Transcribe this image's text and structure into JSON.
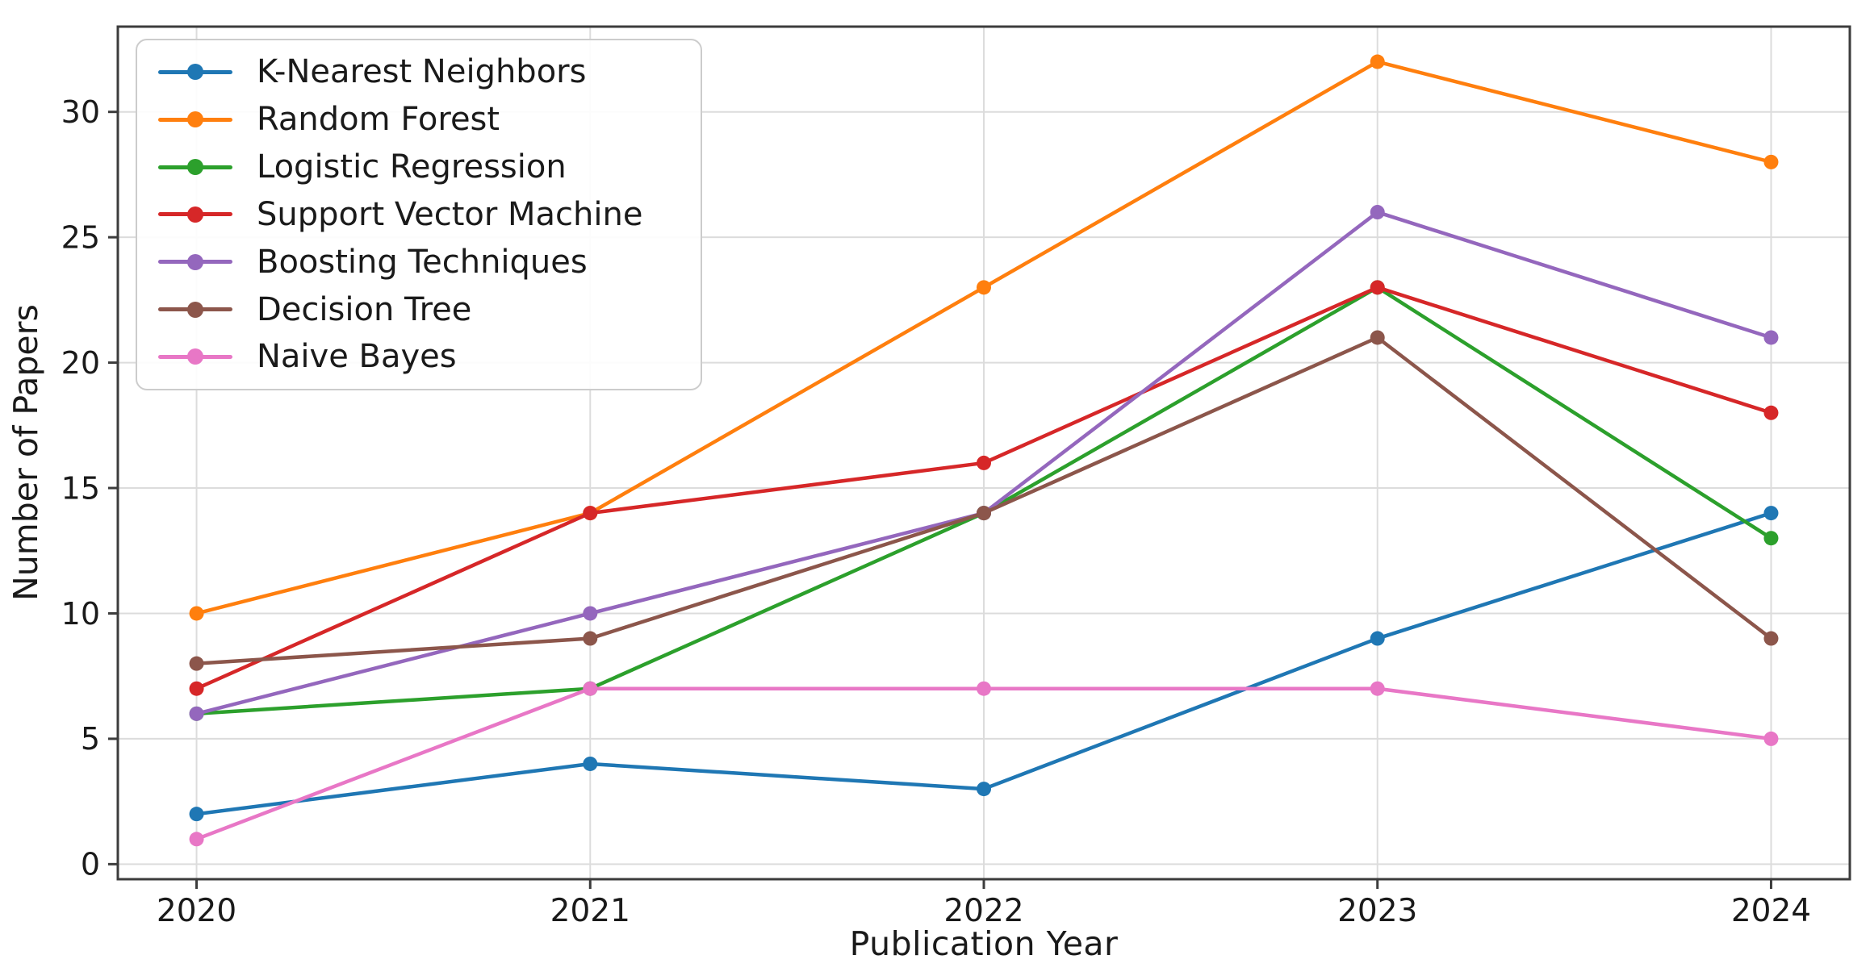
{
  "chart_data": {
    "type": "line",
    "x": [
      2020,
      2021,
      2022,
      2023,
      2024
    ],
    "series": [
      {
        "name": "K-Nearest Neighbors",
        "color": "#1f77b4",
        "values": [
          2,
          4,
          3,
          9,
          14
        ]
      },
      {
        "name": "Random Forest",
        "color": "#ff7f0e",
        "values": [
          10,
          14,
          23,
          32,
          28
        ]
      },
      {
        "name": "Logistic Regression",
        "color": "#2ca02c",
        "values": [
          6,
          7,
          14,
          23,
          13
        ]
      },
      {
        "name": "Support Vector Machine",
        "color": "#d62728",
        "values": [
          7,
          14,
          16,
          23,
          18
        ]
      },
      {
        "name": "Boosting Techniques",
        "color": "#9467bd",
        "values": [
          6,
          10,
          14,
          26,
          21
        ]
      },
      {
        "name": "Decision Tree",
        "color": "#8c564b",
        "values": [
          8,
          9,
          14,
          21,
          9
        ]
      },
      {
        "name": "Naive Bayes",
        "color": "#e877c6",
        "values": [
          1,
          7,
          7,
          7,
          5
        ]
      }
    ],
    "title": "",
    "xlabel": "Publication Year",
    "ylabel": "Number of Papers",
    "yticks": [
      0,
      5,
      10,
      15,
      20,
      25,
      30
    ],
    "xticks": [
      "2020",
      "2021",
      "2022",
      "2023",
      "2024"
    ],
    "xlim": [
      2019.8,
      2024.2
    ],
    "ylim": [
      -0.6,
      33.4
    ],
    "grid": true,
    "legend_position": "upper left",
    "marker": "circle",
    "grid_color": "#dcdcdc",
    "spine_color": "#3c3c3c",
    "tick_text_color": "#1a1a1a"
  }
}
